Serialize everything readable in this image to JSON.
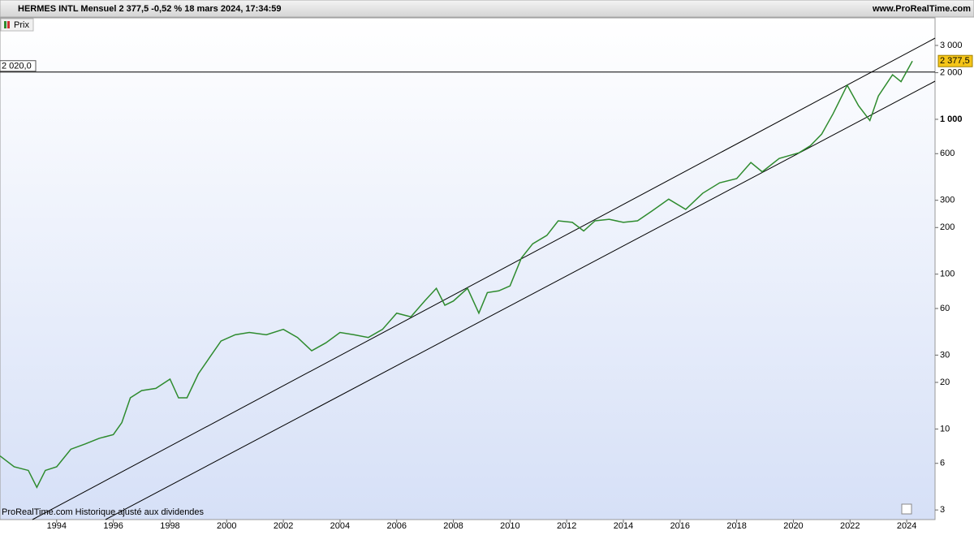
{
  "chart_data": {
    "type": "line",
    "title": "HERMES INTL Mensuel 2 377,5 -0,52 % 18 mars 2024, 17:34:59",
    "source": "www.ProRealTime.com",
    "footer": "ProRealTime.com  Historique ajusté aux dividendes",
    "log_scale": true,
    "x": [
      1992.0,
      1992.5,
      1993.0,
      1993.3,
      1993.6,
      1994.0,
      1994.5,
      1995.0,
      1995.5,
      1996.0,
      1996.3,
      1996.6,
      1997.0,
      1997.5,
      1998.0,
      1998.3,
      1998.6,
      1999.0,
      1999.4,
      1999.8,
      2000.3,
      2000.8,
      2001.4,
      2002.0,
      2002.5,
      2003.0,
      2003.5,
      2004.0,
      2004.5,
      2005.0,
      2005.5,
      2006.0,
      2006.5,
      2007.0,
      2007.4,
      2007.7,
      2008.0,
      2008.5,
      2008.9,
      2009.2,
      2009.6,
      2010.0,
      2010.4,
      2010.8,
      2011.3,
      2011.7,
      2012.2,
      2012.6,
      2013.0,
      2013.5,
      2014.0,
      2014.5,
      2015.0,
      2015.6,
      2016.2,
      2016.8,
      2017.4,
      2018.0,
      2018.5,
      2018.9,
      2019.5,
      2020.2,
      2020.6,
      2021.0,
      2021.4,
      2021.9,
      2022.3,
      2022.7,
      2023.0,
      2023.5,
      2023.8,
      2024.2
    ],
    "series": [
      {
        "name": "Prix",
        "color": "#2e8b2e",
        "values": [
          6.7,
          5.7,
          5.4,
          4.2,
          5.4,
          5.7,
          7.4,
          8.0,
          8.7,
          9.2,
          11,
          15.9,
          17.7,
          18.3,
          21,
          15.9,
          15.9,
          22.7,
          29,
          37,
          40.6,
          42,
          40.6,
          44,
          39,
          32,
          36,
          42,
          40.6,
          39,
          44,
          56,
          53,
          67.5,
          81,
          63,
          67,
          81,
          56,
          76,
          78,
          84,
          127,
          157,
          178,
          221,
          216,
          190,
          221,
          226,
          216,
          221,
          255,
          305,
          262,
          333,
          389,
          414,
          526,
          458,
          559,
          608,
          675,
          803,
          1085,
          1660,
          1224,
          982,
          1414,
          1940,
          1750,
          2377.5
        ]
      }
    ],
    "last_price": {
      "value": 2377.5,
      "label": "2 377,5"
    },
    "hline": {
      "value": 2020,
      "label": "2 020,0"
    },
    "xlim": [
      1992,
      2025
    ],
    "xticks": [
      1994,
      1996,
      1998,
      2000,
      2002,
      2004,
      2006,
      2008,
      2010,
      2012,
      2014,
      2016,
      2018,
      2020,
      2022,
      2024
    ],
    "ylim": [
      2.6,
      4520
    ],
    "yticks": [
      {
        "value": 3000,
        "label": "3 000"
      },
      {
        "value": 2000,
        "label": "2 000"
      },
      {
        "value": 1000,
        "label": "1 000"
      },
      600,
      300,
      200,
      100,
      60,
      30,
      20,
      10,
      6,
      3
    ]
  }
}
